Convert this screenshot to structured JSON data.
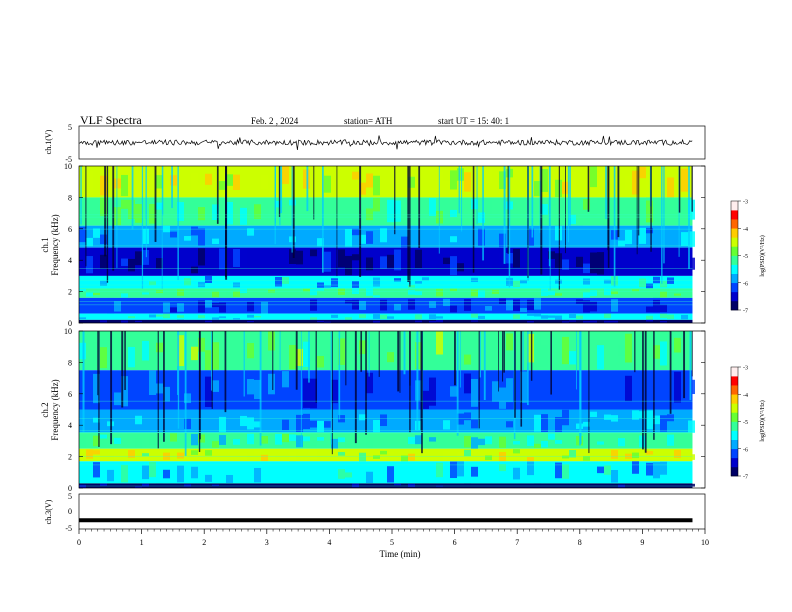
{
  "header": {
    "title": "VLF  Spectra",
    "date": "Feb. 2  , 2024",
    "station": "station= ATH",
    "start": "start  UT  =    15: 40: 1"
  },
  "colors": {
    "colormap": [
      "#000066",
      "#0000cc",
      "#0044ff",
      "#00aaff",
      "#00ffff",
      "#33ff99",
      "#66ff33",
      "#ccff00",
      "#ffcc00",
      "#ff6600",
      "#ff0000",
      "#ffeeee"
    ],
    "trace": "#000000"
  },
  "chart_data": [
    {
      "type": "line",
      "panel": "ch1-waveform",
      "ylabel": "ch.1(V)",
      "ylim": [
        -5,
        5
      ],
      "y_ticks": [
        "5",
        "-5"
      ],
      "xlim": [
        0,
        10
      ],
      "series": [
        {
          "x_range": [
            0,
            9.8
          ],
          "approx_level": 0.0,
          "description_values": [
            -1.5,
            1.5
          ]
        }
      ]
    },
    {
      "type": "heatmap",
      "panel": "ch1-spectrogram",
      "ylabel_channel": "ch.1",
      "ylabel": "Frequency  (kHz)",
      "ylim": [
        0,
        10
      ],
      "y_ticks": [
        "0",
        "2",
        "4",
        "6",
        "8",
        "10"
      ],
      "xlim": [
        0,
        10
      ],
      "colorbar": {
        "label": "log(PSD)(V²/Hz)",
        "ticks": [
          "-3",
          "-4",
          "-5",
          "-6",
          "-7"
        ],
        "range": [
          -7,
          -3
        ]
      },
      "bands": [
        {
          "f": [
            8.0,
            10.0
          ],
          "level": -4.2
        },
        {
          "f": [
            6.2,
            8.0
          ],
          "level": -5.0
        },
        {
          "f": [
            4.8,
            6.2
          ],
          "level": -5.9
        },
        {
          "f": [
            3.0,
            4.8
          ],
          "level": -6.6
        },
        {
          "f": [
            2.2,
            3.0
          ],
          "level": -5.6
        },
        {
          "f": [
            1.6,
            2.2
          ],
          "level": -5.0
        },
        {
          "f": [
            0.6,
            1.6
          ],
          "level": -6.2
        },
        {
          "f": [
            0.2,
            0.6
          ],
          "level": -5.4
        },
        {
          "f": [
            0.0,
            0.2
          ],
          "level": -7.0
        }
      ]
    },
    {
      "type": "heatmap",
      "panel": "ch2-spectrogram",
      "ylabel_channel": "ch.2",
      "ylabel": "Frequency  (kHz)",
      "ylim": [
        0,
        10
      ],
      "y_ticks": [
        "0",
        "2",
        "4",
        "6",
        "8",
        "10"
      ],
      "xlim": [
        0,
        10
      ],
      "colorbar": {
        "label": "log(PSD)(V²/Hz)",
        "ticks": [
          "-3",
          "-4",
          "-5",
          "-6",
          "-7"
        ],
        "range": [
          -7,
          -3
        ]
      },
      "bands": [
        {
          "f": [
            7.5,
            10.0
          ],
          "level": -4.9
        },
        {
          "f": [
            5.0,
            7.5
          ],
          "level": -6.2
        },
        {
          "f": [
            3.5,
            5.0
          ],
          "level": -5.8
        },
        {
          "f": [
            2.5,
            3.5
          ],
          "level": -5.2
        },
        {
          "f": [
            1.7,
            2.5
          ],
          "level": -4.3
        },
        {
          "f": [
            0.3,
            1.7
          ],
          "level": -5.6
        },
        {
          "f": [
            0.0,
            0.3
          ],
          "level": -7.0
        }
      ]
    },
    {
      "type": "line",
      "panel": "ch3-waveform",
      "ylabel": "ch.3(V)",
      "ylim": [
        -5,
        5
      ],
      "y_ticks": [
        "5",
        "0",
        "-5"
      ],
      "xlim": [
        0,
        10
      ],
      "series": [
        {
          "x_range": [
            0,
            9.8
          ],
          "approx_level": -2.5
        }
      ]
    }
  ],
  "x_axis": {
    "label": "Time  (min)",
    "ticks": [
      "0",
      "1",
      "2",
      "3",
      "4",
      "5",
      "6",
      "7",
      "8",
      "9",
      "10"
    ]
  }
}
